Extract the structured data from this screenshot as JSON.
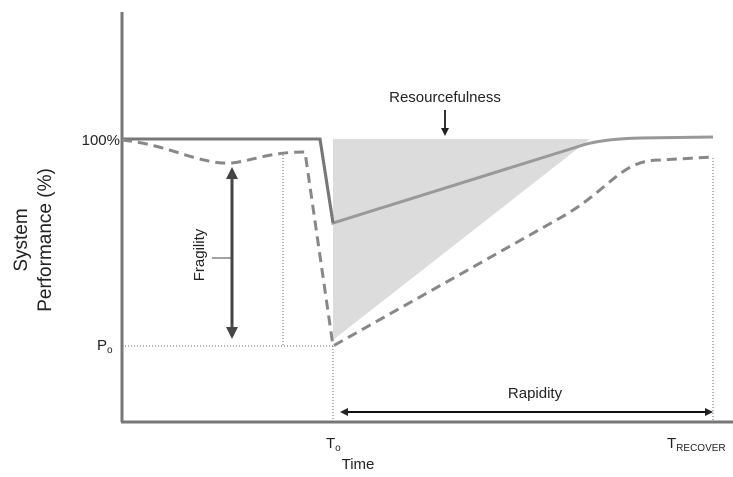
{
  "axis": {
    "y_label": [
      "System",
      "Performance (%)"
    ],
    "x_label": "Time",
    "y_ticks": {
      "top": "100%",
      "low": {
        "main": "P",
        "sub": "o"
      }
    },
    "x_ticks": {
      "start": {
        "main": "T",
        "sub": "o"
      },
      "end": {
        "main": "T",
        "sub": "RECOVER"
      }
    }
  },
  "annotations": {
    "fragility": "Fragility",
    "resourcefulness": "Resourcefulness",
    "rapidity": "Rapidity"
  }
}
